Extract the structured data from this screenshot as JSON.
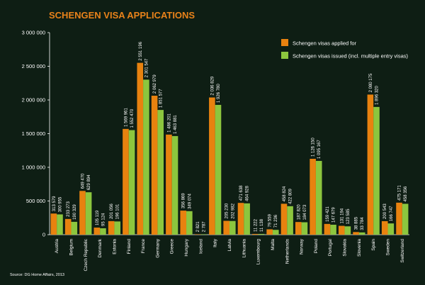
{
  "chart_data": {
    "type": "bar",
    "title": "SCHENGEN VISA APPLICATIONS",
    "source": "Source: DG Home Affairs, 2013",
    "ylim": [
      0,
      3000000
    ],
    "yticks": [
      0,
      500000,
      1000000,
      1500000,
      2000000,
      2500000,
      3000000
    ],
    "ytick_labels": [
      "0",
      "500 000",
      "1 000 000",
      "1 500 000",
      "2 000 000",
      "2 500 000",
      "3 000 000"
    ],
    "grid": false,
    "legend_position": "top-right",
    "categories": [
      "Austria",
      "Belgium",
      "Czech Republic",
      "Denmark",
      "Estonia",
      "Finland",
      "France",
      "Germany",
      "Greece",
      "Hungary",
      "Iceland",
      "Italy",
      "Latvia",
      "Lithuania",
      "Luxembourg",
      "Malta",
      "Netherlands",
      "Norway",
      "Poland",
      "Portugal",
      "Slovakia",
      "Slovenia",
      "Spain",
      "Sweden",
      "Switzerland"
    ],
    "series": [
      {
        "name": "Schengen visas applied for",
        "color": "#e8820f",
        "values": [
          313579,
          233273,
          649470,
          105119,
          201056,
          1569961,
          2551196,
          2062979,
          1486201,
          356869,
          2821,
          2036829,
          205230,
          471638,
          11222,
          79559,
          458824,
          187820,
          1126150,
          159421,
          131194,
          38885,
          2080175,
          200543,
          475171
        ],
        "labels": [
          "313 579",
          "233 273",
          "649 470",
          "105 119",
          "201 056",
          "1 569 961",
          "2 551 196",
          "2 062 979",
          "1 486 201",
          "356 869",
          "2 821",
          "2 036 829",
          "205 230",
          "471 638",
          "11 222",
          "79 559",
          "458 824",
          "187 820",
          "1 126 150",
          "159 421",
          "131 194",
          "38 885",
          "2 080 175",
          "200 543",
          "475 171"
        ]
      },
      {
        "name": "Schengen visas issued (incl. multiple entry visas)",
        "color": "#8cc63e",
        "values": [
          300955,
          190329,
          629894,
          95124,
          196101,
          1552470,
          2301547,
          1851577,
          1463881,
          349074,
          2787,
          1926780,
          202982,
          464928,
          11138,
          71236,
          422809,
          184073,
          1095167,
          147679,
          123585,
          33784,
          1896320,
          166747,
          458356
        ],
        "labels": [
          "300 955",
          "190 329",
          "629 894",
          "95 124",
          "196 101",
          "1 552 470",
          "2 301 547",
          "1 851 577",
          "1 463 881",
          "349 074",
          "2 787",
          "1 926 780",
          "202 982",
          "464 928",
          "11 138",
          "71 236",
          "422 809",
          "184 073",
          "1 095 167",
          "147 679",
          "123 585",
          "33 784",
          "1 896 320",
          "166 747",
          "458 356"
        ]
      }
    ]
  }
}
